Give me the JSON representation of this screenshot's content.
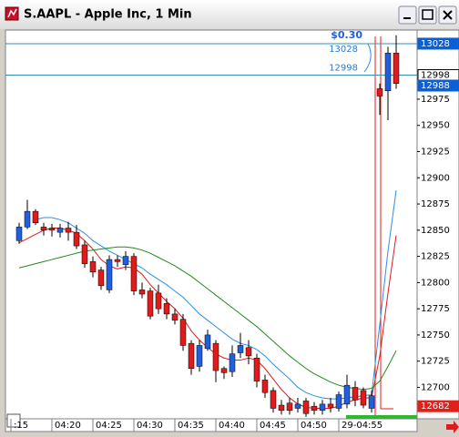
{
  "chart_data": {
    "type": "candlestick",
    "title": "S.AAPL - Apple Inc, 1 Min",
    "categories": [
      ":15",
      null,
      null,
      null,
      null,
      "04:20",
      null,
      null,
      null,
      null,
      "04:25",
      null,
      null,
      null,
      null,
      "04:30",
      null,
      null,
      null,
      null,
      "04:35",
      null,
      null,
      null,
      null,
      "04:40",
      null,
      null,
      null,
      null,
      "04:45",
      null,
      null,
      null,
      null,
      "04:50",
      null,
      null,
      null,
      null,
      "29-04:55",
      null,
      null,
      null,
      null,
      null,
      null,
      null
    ],
    "open": [
      null,
      12840,
      12853,
      12868,
      12853,
      12852,
      12848,
      12852,
      12848,
      12836,
      12820,
      12812,
      12793,
      12822,
      12817,
      12825,
      12793,
      12792,
      12790,
      12780,
      12770,
      12765,
      12742,
      12720,
      12737,
      12742,
      12718,
      12715,
      12733,
      12738,
      12728,
      12707,
      12697,
      12683,
      12685,
      12680,
      12687,
      12682,
      12678,
      12684,
      12680,
      12684,
      12700,
      12697,
      12680,
      12985,
      12983,
      13019
    ],
    "high": [
      null,
      12857,
      12879,
      12870,
      12857,
      12856,
      12856,
      12858,
      12855,
      12840,
      12825,
      12815,
      12826,
      12826,
      12830,
      12828,
      12800,
      12795,
      12798,
      12785,
      12775,
      12770,
      12745,
      12745,
      12755,
      12745,
      12720,
      12740,
      12752,
      12745,
      12732,
      12712,
      12700,
      12688,
      12690,
      12690,
      12690,
      12686,
      12688,
      12690,
      12696,
      12712,
      12706,
      12700,
      12697,
      12990,
      13025,
      13036
    ],
    "low": [
      null,
      12837,
      12851,
      12855,
      12845,
      12844,
      12843,
      12840,
      12832,
      12814,
      12805,
      12793,
      12790,
      12815,
      12812,
      12788,
      12785,
      12765,
      12770,
      12765,
      12760,
      12735,
      12712,
      12715,
      12735,
      12705,
      12708,
      12710,
      12728,
      12722,
      12700,
      12690,
      12676,
      12674,
      12674,
      12676,
      12672,
      12674,
      12674,
      12676,
      12677,
      12680,
      12682,
      12680,
      12676,
      12960,
      12955,
      12985
    ],
    "close": [
      null,
      12853,
      12868,
      12857,
      12850,
      12850,
      12852,
      12848,
      12835,
      12818,
      12810,
      12797,
      12822,
      12820,
      12825,
      12792,
      12789,
      12768,
      12775,
      12770,
      12764,
      12740,
      12718,
      12740,
      12750,
      12716,
      12714,
      12732,
      12740,
      12730,
      12706,
      12695,
      12680,
      12678,
      12678,
      12684,
      12675,
      12678,
      12684,
      12681,
      12693,
      12702,
      12688,
      12683,
      12692,
      12978,
      13019,
      12990
    ],
    "up_color": "#1f5fe0",
    "down_color": "#e01b1b",
    "series": [
      {
        "color": "#e01b1b",
        "values": [
          null,
          12838,
          12842,
          12846,
          12850,
          12852,
          12852,
          12850,
          12847,
          12840,
          12832,
          12822,
          12816,
          12813,
          12815,
          12814,
          12808,
          12798,
          12790,
          12782,
          12775,
          12766,
          12754,
          12745,
          12738,
          12732,
          12728,
          12726,
          12726,
          12728,
          12726,
          12718,
          12708,
          12698,
          12690,
          12684,
          12681,
          12680,
          12680,
          12680,
          12682,
          12686,
          12688,
          12690,
          12690,
          12730,
          12790,
          12845
        ]
      },
      {
        "color": "#2a8fe6",
        "values": [
          null,
          null,
          null,
          12860,
          12862,
          12862,
          12860,
          12857,
          12852,
          12847,
          12840,
          12835,
          12830,
          12826,
          12822,
          12818,
          12814,
          12808,
          12803,
          12798,
          12792,
          12786,
          12778,
          12770,
          12764,
          12758,
          12752,
          12746,
          12742,
          12740,
          12736,
          12730,
          12722,
          12715,
          12708,
          12700,
          12695,
          12692,
          12690,
          12689,
          12689,
          12690,
          12691,
          12692,
          12693,
          12760,
          12830,
          12888
        ]
      },
      {
        "color": "#1e8a1e",
        "values": [
          null,
          12814,
          12816,
          12818,
          12820,
          12822,
          12824,
          12826,
          12828,
          12830,
          12831,
          12832,
          12833,
          12834,
          12834,
          12833,
          12831,
          12828,
          12824,
          12820,
          12816,
          12811,
          12806,
          12800,
          12794,
          12788,
          12782,
          12776,
          12770,
          12764,
          12758,
          12751,
          12744,
          12737,
          12730,
          12724,
          12718,
          12713,
          12709,
          12705,
          12702,
          12700,
          12699,
          12698,
          12699,
          12706,
          12720,
          12735
        ]
      }
    ],
    "ylim": [
      12670,
      13041
    ],
    "yticks": [
      12700,
      12725,
      12750,
      12775,
      12800,
      12825,
      12850,
      12875,
      12900,
      12925,
      12950,
      12975
    ],
    "price_lines": [
      13028,
      12998
    ],
    "price_line_color": "#3a8fb0",
    "spread_label": "$0.30",
    "price_markers": [
      {
        "value": 13028,
        "color": "#0b5fd6"
      },
      {
        "value": 12998,
        "color": "#ffffff"
      },
      {
        "value": 12988,
        "color": "#0b5fd6"
      },
      {
        "value": 12682,
        "color": "#e0201a"
      }
    ]
  }
}
